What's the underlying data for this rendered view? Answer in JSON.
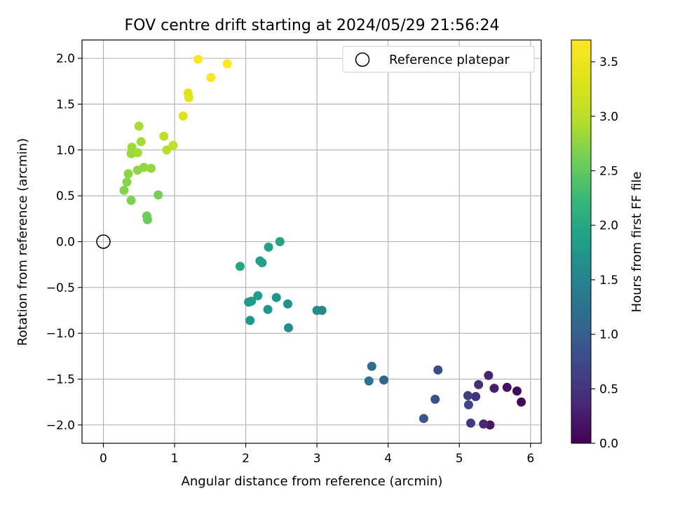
{
  "chart_data": {
    "type": "scatter",
    "title": "FOV centre drift starting at 2024/05/29 21:56:24",
    "xlabel": "Angular distance from reference (arcmin)",
    "ylabel": "Rotation from reference (arcmin)",
    "xlim": [
      -0.3,
      6.15
    ],
    "ylim": [
      -2.2,
      2.2
    ],
    "xticks": [
      0,
      1,
      2,
      3,
      4,
      5,
      6
    ],
    "xtick_labels": [
      "0",
      "1",
      "2",
      "3",
      "4",
      "5",
      "6"
    ],
    "yticks": [
      -2.0,
      -1.5,
      -1.0,
      -0.5,
      0.0,
      0.5,
      1.0,
      1.5,
      2.0
    ],
    "ytick_labels": [
      "−2.0",
      "−1.5",
      "−1.0",
      "−0.5",
      "0.0",
      "0.5",
      "1.0",
      "1.5",
      "2.0"
    ],
    "grid": true,
    "legend": {
      "position": "top-right",
      "entries": [
        {
          "label": "Reference platepar",
          "marker": "hollow-circle"
        }
      ]
    },
    "reference_point": {
      "x": 0.0,
      "y": 0.0
    },
    "colorbar": {
      "label": "Hours from first FF file",
      "colormap": "viridis",
      "range": [
        0.0,
        3.7
      ],
      "ticks": [
        0.0,
        0.5,
        1.0,
        1.5,
        2.0,
        2.5,
        3.0,
        3.5
      ],
      "tick_labels": [
        "0.0",
        "0.5",
        "1.0",
        "1.5",
        "2.0",
        "2.5",
        "3.0",
        "3.5"
      ]
    },
    "points": [
      {
        "x": 5.87,
        "y": -1.75,
        "hours": 0.02
      },
      {
        "x": 5.81,
        "y": -1.63,
        "hours": 0.08
      },
      {
        "x": 5.67,
        "y": -1.59,
        "hours": 0.14
      },
      {
        "x": 5.43,
        "y": -2.0,
        "hours": 0.2
      },
      {
        "x": 5.49,
        "y": -1.6,
        "hours": 0.26
      },
      {
        "x": 5.41,
        "y": -1.46,
        "hours": 0.32
      },
      {
        "x": 5.34,
        "y": -1.99,
        "hours": 0.38
      },
      {
        "x": 5.27,
        "y": -1.56,
        "hours": 0.44
      },
      {
        "x": 5.23,
        "y": -1.69,
        "hours": 0.5
      },
      {
        "x": 5.16,
        "y": -1.98,
        "hours": 0.56
      },
      {
        "x": 5.12,
        "y": -1.68,
        "hours": 0.62
      },
      {
        "x": 5.13,
        "y": -1.78,
        "hours": 0.68
      },
      {
        "x": 4.7,
        "y": -1.4,
        "hours": 0.76
      },
      {
        "x": 4.66,
        "y": -1.72,
        "hours": 0.82
      },
      {
        "x": 4.5,
        "y": -1.93,
        "hours": 0.88
      },
      {
        "x": 3.94,
        "y": -1.51,
        "hours": 1.1
      },
      {
        "x": 3.77,
        "y": -1.36,
        "hours": 1.2
      },
      {
        "x": 3.73,
        "y": -1.52,
        "hours": 1.28
      },
      {
        "x": 3.07,
        "y": -0.75,
        "hours": 1.55
      },
      {
        "x": 3.0,
        "y": -0.75,
        "hours": 1.6
      },
      {
        "x": 2.6,
        "y": -0.94,
        "hours": 1.65
      },
      {
        "x": 2.59,
        "y": -0.68,
        "hours": 1.7
      },
      {
        "x": 2.43,
        "y": -0.61,
        "hours": 1.72
      },
      {
        "x": 2.31,
        "y": -0.74,
        "hours": 1.75
      },
      {
        "x": 2.06,
        "y": -0.86,
        "hours": 1.78
      },
      {
        "x": 2.04,
        "y": -0.66,
        "hours": 1.8
      },
      {
        "x": 2.08,
        "y": -0.65,
        "hours": 1.82
      },
      {
        "x": 2.17,
        "y": -0.59,
        "hours": 1.84
      },
      {
        "x": 2.2,
        "y": -0.21,
        "hours": 1.86
      },
      {
        "x": 2.23,
        "y": -0.23,
        "hours": 1.88
      },
      {
        "x": 2.32,
        "y": -0.06,
        "hours": 1.9
      },
      {
        "x": 2.48,
        "y": 0.0,
        "hours": 1.92
      },
      {
        "x": 1.92,
        "y": -0.27,
        "hours": 1.96
      },
      {
        "x": 0.62,
        "y": 0.24,
        "hours": 2.55
      },
      {
        "x": 0.61,
        "y": 0.28,
        "hours": 2.58
      },
      {
        "x": 0.77,
        "y": 0.51,
        "hours": 2.62
      },
      {
        "x": 0.39,
        "y": 0.45,
        "hours": 2.66
      },
      {
        "x": 0.29,
        "y": 0.56,
        "hours": 2.7
      },
      {
        "x": 0.33,
        "y": 0.65,
        "hours": 2.72
      },
      {
        "x": 0.35,
        "y": 0.74,
        "hours": 2.74
      },
      {
        "x": 0.48,
        "y": 0.78,
        "hours": 2.76
      },
      {
        "x": 0.57,
        "y": 0.81,
        "hours": 2.78
      },
      {
        "x": 0.67,
        "y": 0.8,
        "hours": 2.8
      },
      {
        "x": 0.39,
        "y": 0.96,
        "hours": 2.82
      },
      {
        "x": 0.4,
        "y": 1.03,
        "hours": 2.84
      },
      {
        "x": 0.48,
        "y": 0.97,
        "hours": 2.86
      },
      {
        "x": 0.53,
        "y": 1.09,
        "hours": 2.88
      },
      {
        "x": 0.5,
        "y": 1.26,
        "hours": 2.9
      },
      {
        "x": 0.89,
        "y": 1.0,
        "hours": 2.98
      },
      {
        "x": 0.85,
        "y": 1.15,
        "hours": 3.02
      },
      {
        "x": 0.98,
        "y": 1.05,
        "hours": 3.06
      },
      {
        "x": 1.12,
        "y": 1.37,
        "hours": 3.3
      },
      {
        "x": 1.19,
        "y": 1.62,
        "hours": 3.34
      },
      {
        "x": 1.2,
        "y": 1.57,
        "hours": 3.38
      },
      {
        "x": 1.33,
        "y": 1.99,
        "hours": 3.62
      },
      {
        "x": 1.51,
        "y": 1.79,
        "hours": 3.66
      },
      {
        "x": 1.74,
        "y": 1.94,
        "hours": 3.7
      }
    ]
  }
}
